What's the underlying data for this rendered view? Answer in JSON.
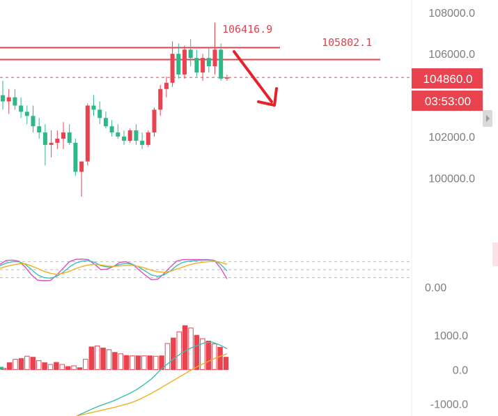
{
  "chart_data": [
    {
      "type": "candlestick",
      "panel": "price",
      "yaxis_ticks": [
        {
          "value": 108000,
          "label": "108000.0"
        },
        {
          "value": 106000,
          "label": "106000.0"
        },
        {
          "value": 102000,
          "label": "102000.0"
        },
        {
          "value": 100000,
          "label": "100000.0"
        }
      ],
      "ylim": [
        98500,
        108600
      ],
      "price_tag": {
        "label": "104860.0",
        "value": 104860
      },
      "countdown_tag": {
        "label": "03:53:00"
      },
      "annotations": [
        {
          "label": "106416.9",
          "value": 106416.9
        },
        {
          "label": "105802.1",
          "value": 105802.1
        }
      ],
      "resistance_lines": [
        106300,
        105720
      ],
      "current_price_line": 104860,
      "trend_arrow": {
        "direction": "down"
      },
      "candles": [
        {
          "o": 104000,
          "h": 104700,
          "l": 103300,
          "c": 103700
        },
        {
          "o": 103700,
          "h": 104300,
          "l": 103100,
          "c": 103900
        },
        {
          "o": 103900,
          "h": 104300,
          "l": 103300,
          "c": 103500
        },
        {
          "o": 103500,
          "h": 103900,
          "l": 102900,
          "c": 103200
        },
        {
          "o": 103200,
          "h": 103500,
          "l": 102600,
          "c": 103000
        },
        {
          "o": 103000,
          "h": 103500,
          "l": 102200,
          "c": 102500
        },
        {
          "o": 102500,
          "h": 102900,
          "l": 101900,
          "c": 102200
        },
        {
          "o": 102200,
          "h": 102600,
          "l": 100600,
          "c": 101600
        },
        {
          "o": 101600,
          "h": 102300,
          "l": 101000,
          "c": 101700
        },
        {
          "o": 101700,
          "h": 102300,
          "l": 101400,
          "c": 101900
        },
        {
          "o": 101900,
          "h": 102700,
          "l": 101400,
          "c": 102200
        },
        {
          "o": 102200,
          "h": 102600,
          "l": 101600,
          "c": 101700
        },
        {
          "o": 101700,
          "h": 101900,
          "l": 100100,
          "c": 100300
        },
        {
          "o": 100300,
          "h": 100800,
          "l": 99100,
          "c": 100800
        },
        {
          "o": 100800,
          "h": 103600,
          "l": 100600,
          "c": 103500
        },
        {
          "o": 103500,
          "h": 104000,
          "l": 103000,
          "c": 103300
        },
        {
          "o": 103300,
          "h": 103700,
          "l": 102600,
          "c": 102900
        },
        {
          "o": 102900,
          "h": 103200,
          "l": 102400,
          "c": 102500
        },
        {
          "o": 102500,
          "h": 102800,
          "l": 102000,
          "c": 102200
        },
        {
          "o": 102200,
          "h": 102600,
          "l": 101900,
          "c": 102000
        },
        {
          "o": 102000,
          "h": 102300,
          "l": 101600,
          "c": 101800
        },
        {
          "o": 101800,
          "h": 102400,
          "l": 101700,
          "c": 102300
        },
        {
          "o": 102300,
          "h": 102600,
          "l": 101600,
          "c": 101800
        },
        {
          "o": 101800,
          "h": 102200,
          "l": 101400,
          "c": 101600
        },
        {
          "o": 101600,
          "h": 102300,
          "l": 101500,
          "c": 102200
        },
        {
          "o": 102200,
          "h": 103400,
          "l": 102000,
          "c": 103300
        },
        {
          "o": 103300,
          "h": 104500,
          "l": 103000,
          "c": 104300
        },
        {
          "o": 104300,
          "h": 104900,
          "l": 103900,
          "c": 104600
        },
        {
          "o": 104600,
          "h": 106600,
          "l": 104400,
          "c": 106000
        },
        {
          "o": 106000,
          "h": 106500,
          "l": 104800,
          "c": 105000
        },
        {
          "o": 105000,
          "h": 106400,
          "l": 104800,
          "c": 106200
        },
        {
          "o": 106200,
          "h": 106700,
          "l": 105400,
          "c": 105800
        },
        {
          "o": 105800,
          "h": 106200,
          "l": 104900,
          "c": 105100
        },
        {
          "o": 105100,
          "h": 106000,
          "l": 104700,
          "c": 105800
        },
        {
          "o": 105800,
          "h": 106300,
          "l": 105100,
          "c": 105400
        },
        {
          "o": 105400,
          "h": 107500,
          "l": 105000,
          "c": 106200
        },
        {
          "o": 106200,
          "h": 106500,
          "l": 104700,
          "c": 104800
        },
        {
          "o": 104800,
          "h": 105000,
          "l": 104700,
          "c": 104860
        }
      ]
    },
    {
      "type": "line",
      "panel": "stochastic",
      "yaxis_ticks": [
        {
          "value": 0,
          "label": "0.00"
        }
      ],
      "ylim": [
        0,
        100
      ],
      "levels": [
        80,
        50,
        20
      ],
      "series": [
        {
          "color": "#d64fc4",
          "values": [
            70,
            85,
            86,
            82,
            60,
            30,
            10,
            8,
            9,
            30,
            55,
            80,
            89,
            90,
            88,
            70,
            50,
            52,
            62,
            78,
            80,
            70,
            50,
            30,
            12,
            14,
            35,
            60,
            82,
            88,
            88,
            88,
            88,
            88,
            85,
            55,
            15
          ]
        },
        {
          "color": "#3cbfb3",
          "values": [
            65,
            75,
            80,
            80,
            70,
            50,
            30,
            20,
            18,
            25,
            40,
            60,
            75,
            82,
            84,
            78,
            65,
            60,
            62,
            70,
            74,
            70,
            60,
            45,
            30,
            25,
            30,
            45,
            65,
            78,
            82,
            84,
            86,
            86,
            85,
            70,
            45
          ]
        },
        {
          "color": "#f0b020",
          "values": [
            55,
            62,
            68,
            72,
            72,
            64,
            54,
            44,
            36,
            32,
            36,
            44,
            54,
            62,
            68,
            70,
            68,
            64,
            62,
            64,
            66,
            66,
            62,
            56,
            48,
            42,
            40,
            44,
            52,
            60,
            68,
            74,
            78,
            80,
            82,
            78,
            70
          ]
        }
      ]
    },
    {
      "type": "bar",
      "panel": "macd",
      "yaxis_ticks": [
        {
          "value": 1000,
          "label": "1000.0"
        },
        {
          "value": 0,
          "label": "0.0"
        },
        {
          "value": -1000,
          "label": "-1000.0"
        }
      ],
      "ylim": [
        -1350,
        1550
      ],
      "histogram": [
        40,
        200,
        300,
        320,
        390,
        360,
        260,
        200,
        150,
        210,
        150,
        90,
        110,
        55,
        300,
        660,
        690,
        630,
        580,
        500,
        460,
        410,
        400,
        400,
        400,
        400,
        390,
        400,
        760,
        920,
        1100,
        1280,
        1210,
        1000,
        900,
        830,
        750,
        650,
        360
      ],
      "series": [
        {
          "color": "#3cbfb3",
          "values": [
            -1350,
            -1250,
            -1150,
            -1060,
            -980,
            -900,
            -800,
            -700,
            -580,
            -430,
            -260,
            -40,
            150,
            330,
            490,
            610,
            700,
            780,
            800,
            720,
            610
          ]
        },
        {
          "color": "#f0b020",
          "values": [
            -1350,
            -1300,
            -1250,
            -1200,
            -1150,
            -1100,
            -1040,
            -980,
            -900,
            -800,
            -680,
            -560,
            -430,
            -300,
            -170,
            -40,
            80,
            190,
            290,
            380,
            460
          ]
        }
      ]
    }
  ],
  "colors": {
    "up": "#e8434f",
    "down": "#2eb88a",
    "level_line": "#e0434f",
    "price_tag_bg": "#e8434f",
    "axis_text": "#7d7d7d"
  }
}
